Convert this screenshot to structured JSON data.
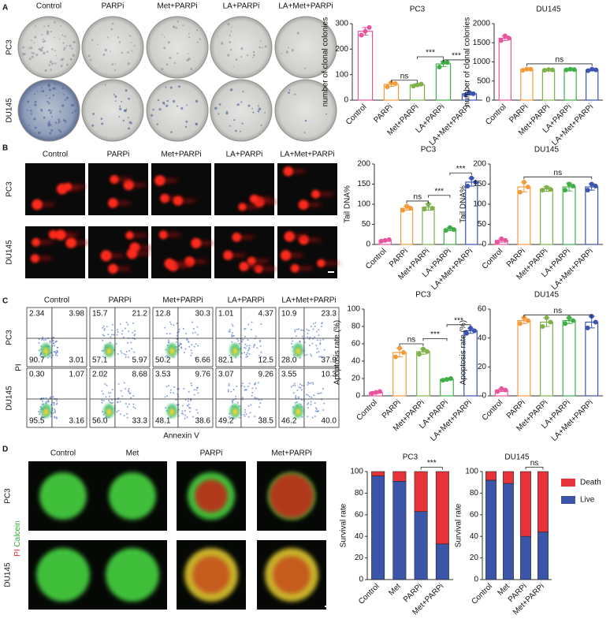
{
  "figure": {
    "A": {
      "letter": "A",
      "columns": [
        "Control",
        "PARPi",
        "Met+PARPi",
        "LA+PARPi",
        "LA+Met+PARPi"
      ],
      "rows": [
        "PC3",
        "DU145"
      ]
    },
    "B": {
      "letter": "B",
      "columns": [
        "Control",
        "PARPi",
        "Met+PARPi",
        "LA+PARPi",
        "LA+Met+PARPi"
      ],
      "rows": [
        "PC3",
        "DU145"
      ]
    },
    "C": {
      "letter": "C",
      "columns": [
        "Control",
        "PARPi",
        "Met+PARPi",
        "LA+PARPi",
        "LA+Met+PARPi"
      ],
      "rows": [
        "PC3",
        "DU145"
      ],
      "x_label": "Annexin V",
      "y_label": "PI",
      "quadrants": [
        [
          [
            "2.34",
            "3.98",
            "90.7",
            "3.01"
          ],
          [
            "15.7",
            "21.2",
            "57.1",
            "5.97"
          ],
          [
            "12.8",
            "30.3",
            "50.2",
            "6.66"
          ],
          [
            "1.01",
            "4.37",
            "82.1",
            "12.5"
          ],
          [
            "10.9",
            "23.3",
            "28.0",
            "37.9"
          ]
        ],
        [
          [
            "0.30",
            "1.07",
            "95.5",
            "3.16"
          ],
          [
            "2.02",
            "8.68",
            "56.0",
            "33.3"
          ],
          [
            "3.53",
            "9.76",
            "48.1",
            "38.6"
          ],
          [
            "3.07",
            "9.26",
            "49.2",
            "38.5"
          ],
          [
            "3.55",
            "10.3",
            "46.2",
            "40.0"
          ]
        ]
      ]
    },
    "D": {
      "letter": "D",
      "columns": [
        "Control",
        "Met",
        "PARPi",
        "Met+PARPi"
      ],
      "rows": [
        "PC3",
        "DU145"
      ],
      "stains": [
        "PI",
        "Calcein"
      ]
    }
  },
  "chart_data": [
    {
      "type": "bar",
      "title": "PC3",
      "ylabel": "number of clonal colonies",
      "categories": [
        "Control",
        "PARPi",
        "Met+PARPi",
        "LA+PARPi",
        "LA+Met+PARPi"
      ],
      "values": [
        270,
        62,
        60,
        142,
        25
      ],
      "errors": [
        15,
        8,
        5,
        10,
        5
      ],
      "points": [
        [
          255,
          270,
          285
        ],
        [
          52,
          68,
          65
        ],
        [
          55,
          60,
          63
        ],
        [
          130,
          148,
          148
        ],
        [
          20,
          30,
          25
        ]
      ],
      "colors": [
        "#e8559e",
        "#f39a3a",
        "#7fb04a",
        "#3fae49",
        "#3b55b0"
      ],
      "ylim": [
        0,
        300
      ],
      "yticks": [
        0,
        100,
        200,
        300
      ],
      "annotations": [
        {
          "text": "ns",
          "pair": [
            "PARPi",
            "Met+PARPi"
          ],
          "y": 78
        },
        {
          "text": "***",
          "pair": [
            "Met+PARPi",
            "LA+PARPi"
          ],
          "y": 170
        },
        {
          "text": "***",
          "pair": [
            "LA+PARPi",
            "LA+Met+PARPi"
          ],
          "y": 158
        }
      ]
    },
    {
      "type": "bar",
      "title": "DU145",
      "ylabel": "number of clonal colonies",
      "categories": [
        "Control",
        "PARPi",
        "Met+PARPi",
        "LA+PARPi",
        "LA+Met+PARPi"
      ],
      "values": [
        1620,
        800,
        790,
        800,
        790
      ],
      "errors": [
        60,
        20,
        15,
        20,
        25
      ],
      "points": [
        [
          1560,
          1680,
          1620
        ],
        [
          780,
          810,
          810
        ],
        [
          780,
          800,
          790
        ],
        [
          790,
          810,
          800
        ],
        [
          770,
          810,
          790
        ]
      ],
      "colors": [
        "#e8559e",
        "#f39a3a",
        "#7fb04a",
        "#3fae49",
        "#3b55b0"
      ],
      "ylim": [
        0,
        2000
      ],
      "yticks": [
        0,
        500,
        1000,
        1500,
        2000
      ],
      "annotations": [
        {
          "text": "ns",
          "pair": [
            "PARPi",
            "LA+Met+PARPi"
          ],
          "y": 950
        }
      ]
    },
    {
      "type": "bar",
      "title": "PC3",
      "ylabel": "Tail DNA%",
      "categories": [
        "Control",
        "PARPi",
        "Met+PARPi",
        "LA+PARPi",
        "LA+Met+PARPi"
      ],
      "values": [
        10,
        90,
        93,
        38,
        155
      ],
      "errors": [
        2,
        5,
        8,
        4,
        10
      ],
      "points": [
        [
          8,
          10,
          12
        ],
        [
          85,
          95,
          90
        ],
        [
          88,
          100,
          90
        ],
        [
          35,
          42,
          37
        ],
        [
          145,
          165,
          155
        ]
      ],
      "colors": [
        "#e8559e",
        "#f39a3a",
        "#7fb04a",
        "#3fae49",
        "#3b55b0"
      ],
      "ylim": [
        0,
        200
      ],
      "yticks": [
        0,
        50,
        100,
        150,
        200
      ],
      "annotations": [
        {
          "text": "ns",
          "pair": [
            "PARPi",
            "Met+PARPi"
          ],
          "y": 108
        },
        {
          "text": "***",
          "pair": [
            "Met+PARPi",
            "LA+PARPi"
          ],
          "y": 122
        },
        {
          "text": "***",
          "pair": [
            "LA+PARPi",
            "LA+Met+PARPi"
          ],
          "y": 178
        }
      ]
    },
    {
      "type": "bar",
      "title": "DU145",
      "ylabel": "Tail DNA%",
      "categories": [
        "Control",
        "PARPi",
        "Met+PARPi",
        "LA+PARPi",
        "LA+Met+PARPi"
      ],
      "values": [
        10,
        143,
        138,
        143,
        143
      ],
      "errors": [
        4,
        12,
        6,
        10,
        8
      ],
      "points": [
        [
          6,
          14,
          10
        ],
        [
          130,
          155,
          143
        ],
        [
          135,
          142,
          137
        ],
        [
          135,
          150,
          145
        ],
        [
          135,
          150,
          145
        ]
      ],
      "colors": [
        "#e8559e",
        "#f39a3a",
        "#7fb04a",
        "#3fae49",
        "#3b55b0"
      ],
      "ylim": [
        0,
        200
      ],
      "yticks": [
        0,
        50,
        100,
        150,
        200
      ],
      "annotations": [
        {
          "text": "ns",
          "pair": [
            "PARPi",
            "LA+Met+PARPi"
          ],
          "y": 168
        }
      ]
    },
    {
      "type": "bar",
      "title": "PC3",
      "ylabel": "Apoptosis rate (%)",
      "categories": [
        "Control",
        "PARPi",
        "Met+PARPi",
        "LA+PARPi",
        "LA+Met+PARPi"
      ],
      "values": [
        4,
        50,
        51,
        19,
        75
      ],
      "errors": [
        1,
        5,
        3,
        1,
        3
      ],
      "points": [
        [
          3,
          4,
          5
        ],
        [
          45,
          55,
          50
        ],
        [
          48,
          54,
          51
        ],
        [
          18,
          19,
          20
        ],
        [
          72,
          78,
          75
        ]
      ],
      "colors": [
        "#e8559e",
        "#f39a3a",
        "#7fb04a",
        "#3fae49",
        "#3b55b0"
      ],
      "ylim": [
        0,
        100
      ],
      "yticks": [
        0,
        20,
        40,
        60,
        80,
        100
      ],
      "annotations": [
        {
          "text": "ns",
          "pair": [
            "PARPi",
            "Met+PARPi"
          ],
          "y": 60
        },
        {
          "text": "***",
          "pair": [
            "Met+PARPi",
            "LA+PARPi"
          ],
          "y": 66
        },
        {
          "text": "***",
          "pair": [
            "LA+PARPi",
            "LA+Met+PARPi"
          ],
          "y": 82
        }
      ]
    },
    {
      "type": "bar",
      "title": "DU145",
      "ylabel": "Apoptosis rate (%)",
      "categories": [
        "Control",
        "PARPi",
        "Met+PARPi",
        "LA+PARPi",
        "LA+Met+PARPi"
      ],
      "values": [
        4,
        52,
        51,
        52,
        51
      ],
      "errors": [
        1,
        2,
        3,
        2,
        4
      ],
      "points": [
        [
          3,
          5,
          4
        ],
        [
          50,
          54,
          52
        ],
        [
          48,
          54,
          51
        ],
        [
          50,
          54,
          52
        ],
        [
          47,
          55,
          51
        ]
      ],
      "colors": [
        "#e8559e",
        "#f39a3a",
        "#7fb04a",
        "#3fae49",
        "#3b55b0"
      ],
      "ylim": [
        0,
        60
      ],
      "yticks": [
        0,
        20,
        40,
        60
      ],
      "annotations": [
        {
          "text": "ns",
          "pair": [
            "PARPi",
            "LA+Met+PARPi"
          ],
          "y": 56
        }
      ]
    },
    {
      "type": "stacked_bar",
      "title": "PC3",
      "ylabel": "Survival rate",
      "categories": [
        "Control",
        "Met",
        "PARPi",
        "Met+PARPi"
      ],
      "series": [
        {
          "name": "Live",
          "color": "#3b55a8",
          "values": [
            96,
            91,
            63,
            33
          ]
        },
        {
          "name": "Death",
          "color": "#e8323a",
          "values": [
            4,
            9,
            37,
            67
          ]
        }
      ],
      "ylim": [
        0,
        100
      ],
      "yticks": [
        0,
        20,
        40,
        60,
        80,
        100
      ],
      "annotations": [
        {
          "text": "***",
          "pair": [
            "PARPi",
            "Met+PARPi"
          ],
          "y": 104
        }
      ]
    },
    {
      "type": "stacked_bar",
      "title": "DU145",
      "ylabel": "Survival rate",
      "categories": [
        "Control",
        "Met",
        "PARPi",
        "Met+PARPi"
      ],
      "series": [
        {
          "name": "Live",
          "color": "#3b55a8",
          "values": [
            92,
            89,
            40,
            44
          ]
        },
        {
          "name": "Death",
          "color": "#e8323a",
          "values": [
            8,
            11,
            60,
            56
          ]
        }
      ],
      "ylim": [
        0,
        100
      ],
      "yticks": [
        0,
        20,
        40,
        60,
        80,
        100
      ],
      "legend": "right",
      "annotations": [
        {
          "text": "ns",
          "pair": [
            "PARPi",
            "Met+PARPi"
          ],
          "y": 104
        }
      ]
    }
  ]
}
